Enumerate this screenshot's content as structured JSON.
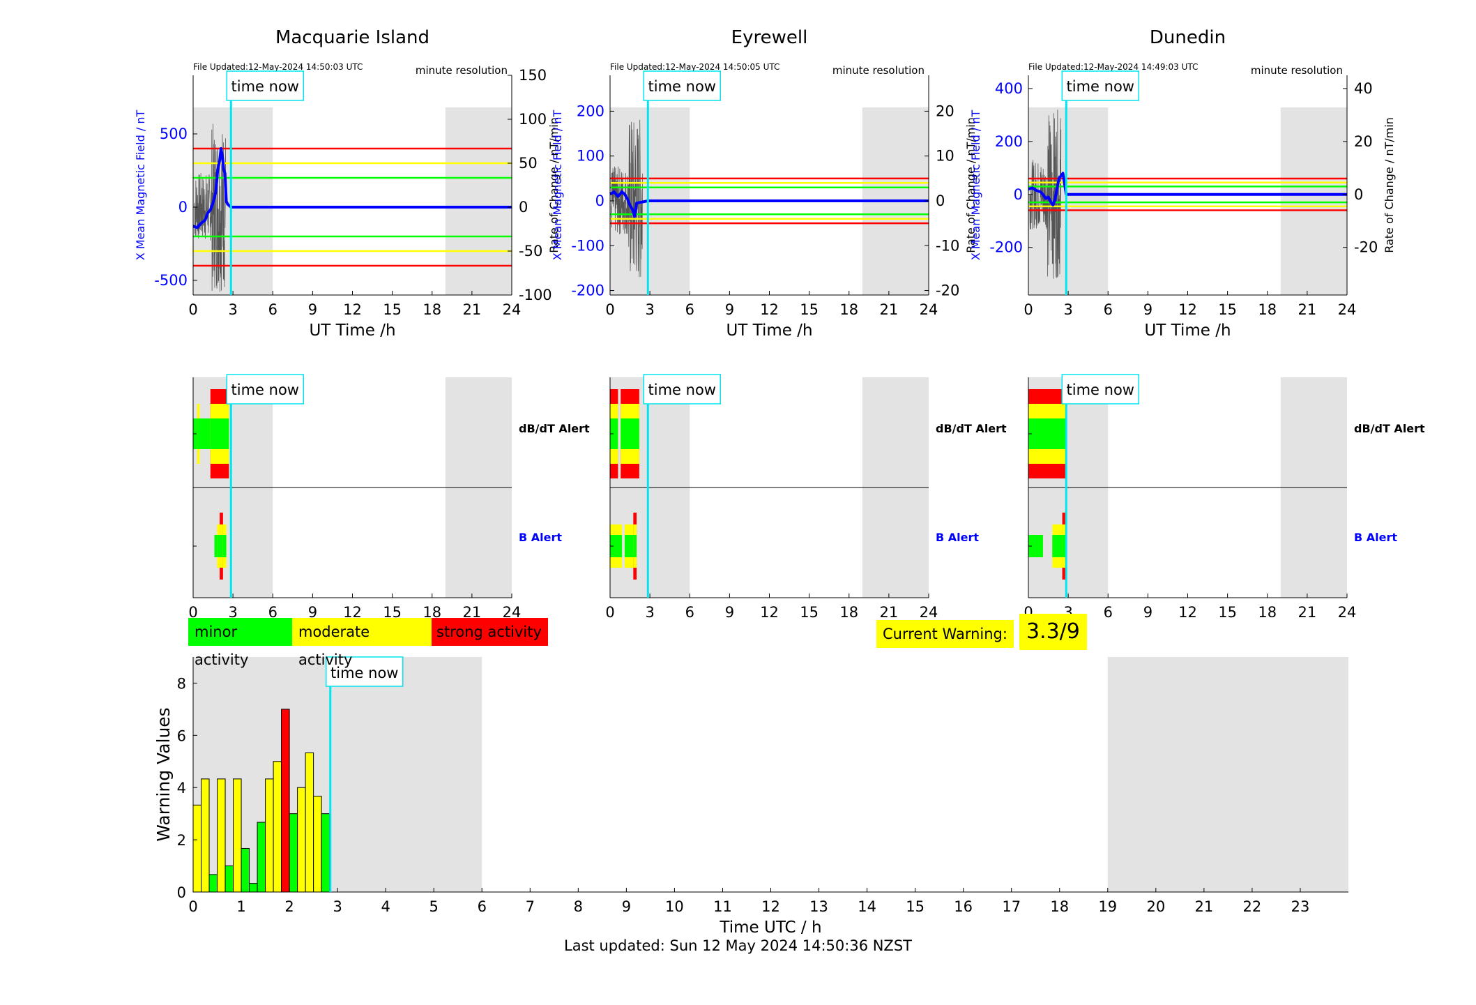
{
  "colors": {
    "shade": "#e3e3e3",
    "red": "#ff0000",
    "yellow": "#ffff00",
    "green": "#00ff00",
    "blue": "#0000ff",
    "cyan": "#00e5ee",
    "trace": "#555555"
  },
  "common": {
    "time_now_label": "time now",
    "ut_axis_label": "UT Time /h",
    "x_ticks": [
      "0",
      "3",
      "6",
      "9",
      "12",
      "15",
      "18",
      "21",
      "24"
    ],
    "dbdt_alert_label": "dB/dT Alert",
    "b_alert_label": "B Alert",
    "time_now_hour": 2.85,
    "shade_spans": [
      [
        0,
        6
      ],
      [
        19,
        24
      ]
    ]
  },
  "stations": [
    {
      "id": "macquarie",
      "name": "Macquarie Island",
      "file_updated": "File Updated:12-May-2024 14:50:03 UTC",
      "resolution": "minute resolution",
      "left_ylabel": "X Mean Magnetic Field / nT",
      "right_ylabel": "Rate of Change / nT/min",
      "left_ylim": [
        -600,
        900
      ],
      "left_ticks": [
        "500",
        "0",
        "-500"
      ],
      "left_tick_values": [
        500,
        0,
        -500
      ],
      "right_ylim": [
        -100,
        150
      ],
      "right_ticks": [
        "150",
        "100",
        "50",
        "0",
        "-50",
        "-100"
      ],
      "right_tick_values": [
        150,
        100,
        50,
        0,
        -50,
        -100
      ],
      "thresholds": [
        {
          "value": 400,
          "color": "red"
        },
        {
          "value": 300,
          "color": "yellow"
        },
        {
          "value": 200,
          "color": "green"
        },
        {
          "value": -200,
          "color": "green"
        },
        {
          "value": -300,
          "color": "yellow"
        },
        {
          "value": -400,
          "color": "red"
        }
      ],
      "field_series": [
        [
          0,
          -130
        ],
        [
          0.3,
          -140
        ],
        [
          0.6,
          -110
        ],
        [
          0.9,
          -90
        ],
        [
          1.1,
          -40
        ],
        [
          1.3,
          -20
        ],
        [
          1.5,
          30
        ],
        [
          1.7,
          100
        ],
        [
          1.85,
          250
        ],
        [
          2.0,
          320
        ],
        [
          2.1,
          400
        ],
        [
          2.2,
          350
        ],
        [
          2.3,
          260
        ],
        [
          2.4,
          230
        ],
        [
          2.5,
          40
        ],
        [
          2.6,
          20
        ],
        [
          2.85,
          0
        ],
        [
          24,
          0
        ]
      ],
      "dbdt_segments": [
        {
          "start": 0,
          "end": 0.3,
          "level": 1
        },
        {
          "start": 0.3,
          "end": 0.5,
          "level": 2
        },
        {
          "start": 0.5,
          "end": 1.3,
          "level": 1
        },
        {
          "start": 1.3,
          "end": 2.7,
          "level": 3
        }
      ],
      "b_segments": [
        {
          "start": 1.6,
          "end": 1.8,
          "level": 1
        },
        {
          "start": 1.8,
          "end": 2.0,
          "level": 2
        },
        {
          "start": 2.0,
          "end": 2.25,
          "level": 3
        },
        {
          "start": 2.25,
          "end": 2.5,
          "level": 2
        }
      ]
    },
    {
      "id": "eyrewell",
      "name": "Eyrewell",
      "file_updated": "File Updated:12-May-2024 14:50:05 UTC",
      "resolution": "minute resolution",
      "left_ylabel": "X Mean Magnetic Field / nT",
      "right_ylabel": "Rate of Change / nT/min",
      "left_ylim": [
        -210,
        280
      ],
      "left_ticks": [
        "200",
        "100",
        "0",
        "-100",
        "-200"
      ],
      "left_tick_values": [
        200,
        100,
        0,
        -100,
        -200
      ],
      "right_ylim": [
        -21,
        28
      ],
      "right_ticks": [
        "20",
        "10",
        "0",
        "-10",
        "-20"
      ],
      "right_tick_values": [
        20,
        10,
        0,
        -10,
        -20
      ],
      "thresholds": [
        {
          "value": 50,
          "color": "red"
        },
        {
          "value": 40,
          "color": "yellow"
        },
        {
          "value": 30,
          "color": "green"
        },
        {
          "value": -30,
          "color": "green"
        },
        {
          "value": -40,
          "color": "yellow"
        },
        {
          "value": -50,
          "color": "red"
        }
      ],
      "field_series": [
        [
          0,
          15
        ],
        [
          0.3,
          20
        ],
        [
          0.6,
          10
        ],
        [
          0.9,
          20
        ],
        [
          1.1,
          15
        ],
        [
          1.3,
          5
        ],
        [
          1.5,
          -10
        ],
        [
          1.7,
          -20
        ],
        [
          1.85,
          -35
        ],
        [
          2.0,
          -5
        ],
        [
          2.85,
          0
        ],
        [
          24,
          0
        ]
      ],
      "dbdt_segments": [
        {
          "start": 0,
          "end": 0.6,
          "level": 3
        },
        {
          "start": 0.8,
          "end": 2.2,
          "level": 3
        }
      ],
      "b_segments": [
        {
          "start": 0,
          "end": 0.9,
          "level": 2
        },
        {
          "start": 1.1,
          "end": 1.75,
          "level": 2
        },
        {
          "start": 1.75,
          "end": 2.0,
          "level": 3
        }
      ]
    },
    {
      "id": "dunedin",
      "name": "Dunedin",
      "file_updated": "File Updated:12-May-2024 14:49:03 UTC",
      "resolution": "minute resolution",
      "left_ylabel": "X Mean Magnetic Field / nT",
      "right_ylabel": "Rate of Change / nT/min",
      "left_ylim": [
        -380,
        450
      ],
      "left_ticks": [
        "400",
        "200",
        "0",
        "-200"
      ],
      "left_tick_values": [
        400,
        200,
        0,
        -200
      ],
      "right_ylim": [
        -38,
        45
      ],
      "right_ticks": [
        "40",
        "20",
        "0",
        "-20"
      ],
      "right_tick_values": [
        40,
        20,
        0,
        -20
      ],
      "thresholds": [
        {
          "value": 60,
          "color": "red"
        },
        {
          "value": 45,
          "color": "yellow"
        },
        {
          "value": 30,
          "color": "green"
        },
        {
          "value": -30,
          "color": "green"
        },
        {
          "value": -45,
          "color": "yellow"
        },
        {
          "value": -60,
          "color": "red"
        }
      ],
      "field_series": [
        [
          0,
          20
        ],
        [
          0.3,
          25
        ],
        [
          0.6,
          15
        ],
        [
          0.9,
          10
        ],
        [
          1.1,
          0
        ],
        [
          1.3,
          -15
        ],
        [
          1.5,
          -10
        ],
        [
          1.7,
          -30
        ],
        [
          1.85,
          -40
        ],
        [
          2.0,
          -20
        ],
        [
          2.3,
          60
        ],
        [
          2.6,
          80
        ],
        [
          2.85,
          0
        ],
        [
          24,
          0
        ]
      ],
      "dbdt_segments": [
        {
          "start": 0,
          "end": 2.9,
          "level": 3
        }
      ],
      "b_segments": [
        {
          "start": 0,
          "end": 1.1,
          "level": 1
        },
        {
          "start": 1.8,
          "end": 2.55,
          "level": 2
        },
        {
          "start": 2.55,
          "end": 2.9,
          "level": 3
        }
      ]
    }
  ],
  "legend": {
    "minor": "minor activity",
    "moderate": "moderate activity",
    "strong": "strong activity"
  },
  "current_warning": {
    "label": "Current Warning:",
    "value": "3.3/9"
  },
  "chart_data": {
    "type": "bar",
    "xlabel": "Time UTC / h",
    "ylabel": "Warning Values",
    "xlim": [
      0,
      24
    ],
    "ylim": [
      0,
      9
    ],
    "x_ticks": [
      "0",
      "1",
      "2",
      "3",
      "4",
      "5",
      "6",
      "7",
      "8",
      "9",
      "10",
      "11",
      "12",
      "13",
      "14",
      "15",
      "16",
      "17",
      "18",
      "19",
      "20",
      "21",
      "22",
      "23"
    ],
    "y_ticks": [
      "0",
      "2",
      "4",
      "6",
      "8"
    ],
    "bar_width_h": 0.1667,
    "bars": [
      {
        "x": 0.0,
        "value": 3.33,
        "level": "moderate"
      },
      {
        "x": 0.1667,
        "value": 4.33,
        "level": "moderate"
      },
      {
        "x": 0.3333,
        "value": 0.67,
        "level": "minor"
      },
      {
        "x": 0.5,
        "value": 4.33,
        "level": "moderate"
      },
      {
        "x": 0.6667,
        "value": 1.0,
        "level": "minor"
      },
      {
        "x": 0.8333,
        "value": 4.33,
        "level": "moderate"
      },
      {
        "x": 1.0,
        "value": 1.67,
        "level": "minor"
      },
      {
        "x": 1.1667,
        "value": 0.33,
        "level": "minor"
      },
      {
        "x": 1.3333,
        "value": 2.67,
        "level": "minor"
      },
      {
        "x": 1.5,
        "value": 4.33,
        "level": "moderate"
      },
      {
        "x": 1.6667,
        "value": 5.0,
        "level": "moderate"
      },
      {
        "x": 1.8333,
        "value": 7.0,
        "level": "strong"
      },
      {
        "x": 2.0,
        "value": 3.0,
        "level": "minor"
      },
      {
        "x": 2.1667,
        "value": 4.0,
        "level": "moderate"
      },
      {
        "x": 2.3333,
        "value": 5.33,
        "level": "moderate"
      },
      {
        "x": 2.5,
        "value": 3.67,
        "level": "moderate"
      },
      {
        "x": 2.6667,
        "value": 3.0,
        "level": "minor"
      }
    ],
    "shade_spans": [
      [
        0,
        6
      ],
      [
        19,
        24
      ]
    ],
    "time_now_hour": 2.85
  },
  "footer": {
    "last_updated": "Last updated: Sun 12 May 2024 14:50:36 NZST"
  }
}
